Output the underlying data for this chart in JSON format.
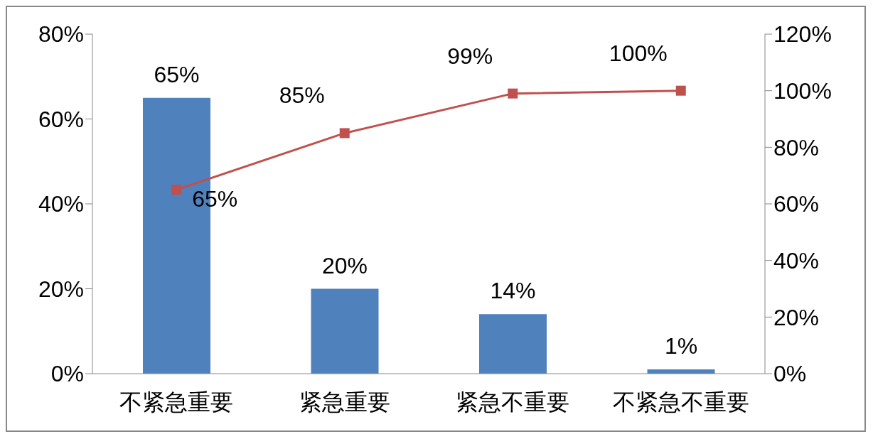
{
  "chart_data": {
    "type": "bar",
    "categories": [
      "不紧急重要",
      "紧急重要",
      "紧急不重要",
      "不紧急不重要"
    ],
    "series": [
      {
        "color": "#4f81bd",
        "values": [
          65,
          20,
          14,
          1
        ],
        "value_labels": [
          "65%",
          "20%",
          "14%",
          "1%"
        ]
      },
      {
        "type": "line",
        "axis": "y2",
        "color": "#c0504d",
        "marker": "square",
        "values": [
          65,
          85,
          99,
          100
        ],
        "value_labels": [
          "65%",
          "85%",
          "99%",
          "100%"
        ]
      }
    ],
    "ylim": [
      0,
      80
    ],
    "yticks": [
      {
        "value": 0,
        "label": "0%"
      },
      {
        "value": 20,
        "label": "20%"
      },
      {
        "value": 40,
        "label": "40%"
      },
      {
        "value": 60,
        "label": "60%"
      },
      {
        "value": 80,
        "label": "80%"
      }
    ],
    "y2lim": [
      0,
      120
    ],
    "y2ticks": [
      {
        "value": 0,
        "label": "0%"
      },
      {
        "value": 20,
        "label": "20%"
      },
      {
        "value": 40,
        "label": "40%"
      },
      {
        "value": 60,
        "label": "60%"
      },
      {
        "value": 80,
        "label": "80%"
      },
      {
        "value": 100,
        "label": "100%"
      },
      {
        "value": 120,
        "label": "120%"
      }
    ],
    "grid": false,
    "legend": false
  }
}
